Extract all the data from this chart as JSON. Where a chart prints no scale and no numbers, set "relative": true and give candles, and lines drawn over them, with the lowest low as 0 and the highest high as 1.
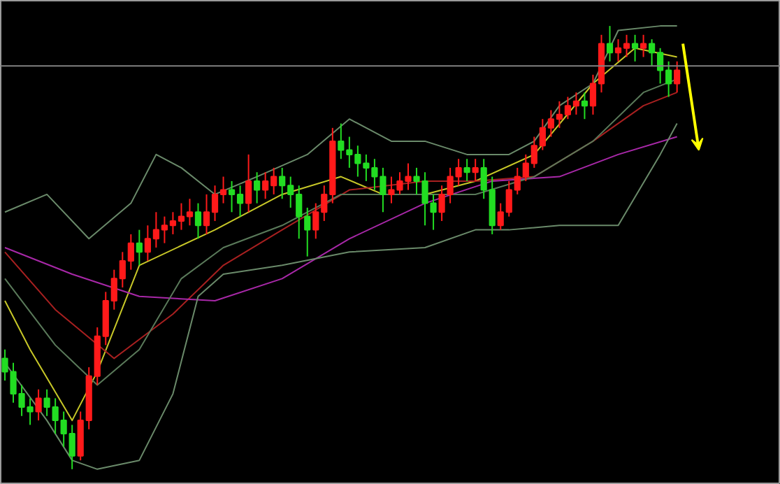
{
  "chart_data": {
    "type": "candlestick",
    "relative": true,
    "grid": false,
    "categories": [
      null,
      null,
      null,
      null,
      null,
      null,
      null,
      null,
      null,
      null,
      null,
      null,
      null,
      null,
      null,
      null,
      null,
      null,
      null,
      null,
      null,
      null,
      null,
      null,
      null,
      null,
      null,
      null,
      null,
      null,
      null,
      null,
      null,
      null,
      null,
      null,
      null,
      null,
      null,
      null,
      null,
      null,
      null,
      null,
      null,
      null,
      null,
      null,
      null,
      null,
      null,
      null,
      null,
      null,
      null,
      null,
      null,
      null,
      null,
      null,
      null,
      null,
      null,
      null,
      null,
      null,
      null,
      null,
      null,
      null,
      null,
      null,
      null,
      null,
      null,
      null,
      null,
      null,
      null,
      null,
      null
    ],
    "ohlc": [
      [
        0.25,
        0.27,
        0.2,
        0.22
      ],
      [
        0.22,
        0.24,
        0.15,
        0.17
      ],
      [
        0.17,
        0.19,
        0.12,
        0.14
      ],
      [
        0.14,
        0.16,
        0.1,
        0.13
      ],
      [
        0.13,
        0.18,
        0.11,
        0.16
      ],
      [
        0.16,
        0.18,
        0.12,
        0.14
      ],
      [
        0.14,
        0.16,
        0.08,
        0.11
      ],
      [
        0.11,
        0.13,
        0.05,
        0.08
      ],
      [
        0.08,
        0.1,
        0.0,
        0.03
      ],
      [
        0.03,
        0.13,
        0.02,
        0.11
      ],
      [
        0.11,
        0.23,
        0.09,
        0.21
      ],
      [
        0.21,
        0.32,
        0.19,
        0.3
      ],
      [
        0.3,
        0.4,
        0.28,
        0.38
      ],
      [
        0.38,
        0.45,
        0.36,
        0.43
      ],
      [
        0.43,
        0.49,
        0.41,
        0.47
      ],
      [
        0.47,
        0.53,
        0.45,
        0.51
      ],
      [
        0.51,
        0.54,
        0.46,
        0.49
      ],
      [
        0.49,
        0.55,
        0.47,
        0.52
      ],
      [
        0.52,
        0.58,
        0.5,
        0.54
      ],
      [
        0.54,
        0.57,
        0.51,
        0.55
      ],
      [
        0.55,
        0.58,
        0.53,
        0.56
      ],
      [
        0.56,
        0.6,
        0.54,
        0.57
      ],
      [
        0.57,
        0.61,
        0.55,
        0.58
      ],
      [
        0.58,
        0.6,
        0.52,
        0.55
      ],
      [
        0.55,
        0.62,
        0.53,
        0.58
      ],
      [
        0.58,
        0.64,
        0.56,
        0.62
      ],
      [
        0.62,
        0.66,
        0.6,
        0.63
      ],
      [
        0.63,
        0.65,
        0.58,
        0.62
      ],
      [
        0.62,
        0.64,
        0.57,
        0.6
      ],
      [
        0.6,
        0.71,
        0.58,
        0.65
      ],
      [
        0.65,
        0.67,
        0.6,
        0.63
      ],
      [
        0.63,
        0.67,
        0.61,
        0.65
      ],
      [
        0.64,
        0.68,
        0.62,
        0.66
      ],
      [
        0.66,
        0.68,
        0.61,
        0.64
      ],
      [
        0.64,
        0.66,
        0.59,
        0.62
      ],
      [
        0.62,
        0.64,
        0.52,
        0.57
      ],
      [
        0.57,
        0.59,
        0.48,
        0.54
      ],
      [
        0.54,
        0.6,
        0.52,
        0.58
      ],
      [
        0.58,
        0.64,
        0.56,
        0.62
      ],
      [
        0.62,
        0.77,
        0.6,
        0.74
      ],
      [
        0.74,
        0.78,
        0.7,
        0.72
      ],
      [
        0.72,
        0.75,
        0.68,
        0.71
      ],
      [
        0.71,
        0.73,
        0.66,
        0.69
      ],
      [
        0.69,
        0.71,
        0.65,
        0.68
      ],
      [
        0.68,
        0.7,
        0.63,
        0.66
      ],
      [
        0.66,
        0.68,
        0.58,
        0.62
      ],
      [
        0.62,
        0.66,
        0.6,
        0.63
      ],
      [
        0.63,
        0.67,
        0.62,
        0.65
      ],
      [
        0.65,
        0.69,
        0.63,
        0.66
      ],
      [
        0.66,
        0.68,
        0.62,
        0.65
      ],
      [
        0.65,
        0.67,
        0.55,
        0.6
      ],
      [
        0.6,
        0.62,
        0.54,
        0.58
      ],
      [
        0.58,
        0.64,
        0.56,
        0.62
      ],
      [
        0.62,
        0.68,
        0.6,
        0.66
      ],
      [
        0.66,
        0.7,
        0.64,
        0.68
      ],
      [
        0.68,
        0.7,
        0.65,
        0.67
      ],
      [
        0.67,
        0.7,
        0.65,
        0.68
      ],
      [
        0.68,
        0.7,
        0.61,
        0.63
      ],
      [
        0.63,
        0.66,
        0.53,
        0.55
      ],
      [
        0.55,
        0.6,
        0.54,
        0.58
      ],
      [
        0.58,
        0.65,
        0.57,
        0.63
      ],
      [
        0.63,
        0.68,
        0.62,
        0.66
      ],
      [
        0.66,
        0.71,
        0.65,
        0.69
      ],
      [
        0.69,
        0.75,
        0.68,
        0.73
      ],
      [
        0.73,
        0.79,
        0.72,
        0.77
      ],
      [
        0.77,
        0.81,
        0.75,
        0.79
      ],
      [
        0.79,
        0.83,
        0.77,
        0.8
      ],
      [
        0.8,
        0.84,
        0.79,
        0.82
      ],
      [
        0.82,
        0.85,
        0.8,
        0.83
      ],
      [
        0.83,
        0.85,
        0.79,
        0.82
      ],
      [
        0.82,
        0.89,
        0.8,
        0.87
      ],
      [
        0.87,
        0.98,
        0.85,
        0.96
      ],
      [
        0.96,
        1.0,
        0.92,
        0.94
      ],
      [
        0.94,
        0.97,
        0.92,
        0.95
      ],
      [
        0.95,
        0.98,
        0.93,
        0.96
      ],
      [
        0.96,
        0.98,
        0.92,
        0.95
      ],
      [
        0.95,
        0.98,
        0.93,
        0.96
      ],
      [
        0.96,
        0.97,
        0.91,
        0.94
      ],
      [
        0.94,
        0.95,
        0.87,
        0.9
      ],
      [
        0.9,
        0.92,
        0.84,
        0.87
      ],
      [
        0.87,
        0.92,
        0.85,
        0.9
      ]
    ],
    "colors": [
      "#22dd22",
      "#22dd22",
      "#22dd22",
      "#22dd22",
      "#ff1a1a",
      "#22dd22",
      "#22dd22",
      "#22dd22",
      "#22dd22",
      "#ff1a1a",
      "#ff1a1a",
      "#ff1a1a",
      "#ff1a1a",
      "#ff1a1a",
      "#ff1a1a",
      "#ff1a1a",
      "#22dd22",
      "#ff1a1a",
      "#ff1a1a",
      "#ff1a1a",
      "#ff1a1a",
      "#ff1a1a",
      "#ff1a1a",
      "#22dd22",
      "#ff1a1a",
      "#ff1a1a",
      "#ff1a1a",
      "#22dd22",
      "#22dd22",
      "#ff1a1a",
      "#22dd22",
      "#ff1a1a",
      "#ff1a1a",
      "#22dd22",
      "#22dd22",
      "#22dd22",
      "#22dd22",
      "#ff1a1a",
      "#ff1a1a",
      "#ff1a1a",
      "#22dd22",
      "#22dd22",
      "#22dd22",
      "#22dd22",
      "#22dd22",
      "#22dd22",
      "#ff1a1a",
      "#ff1a1a",
      "#ff1a1a",
      "#22dd22",
      "#22dd22",
      "#22dd22",
      "#ff1a1a",
      "#ff1a1a",
      "#ff1a1a",
      "#22dd22",
      "#ff1a1a",
      "#22dd22",
      "#22dd22",
      "#ff1a1a",
      "#ff1a1a",
      "#ff1a1a",
      "#ff1a1a",
      "#ff1a1a",
      "#ff1a1a",
      "#ff1a1a",
      "#ff1a1a",
      "#ff1a1a",
      "#ff1a1a",
      "#22dd22",
      "#ff1a1a",
      "#ff1a1a",
      "#22dd22",
      "#ff1a1a",
      "#ff1a1a",
      "#22dd22",
      "#ff1a1a",
      "#22dd22",
      "#22dd22",
      "#22dd22",
      "#ff1a1a"
    ],
    "series": [
      {
        "type": "line",
        "color": "#c8c828",
        "values": [
          0.38,
          null,
          null,
          0.27,
          null,
          null,
          null,
          null,
          0.11,
          null,
          null,
          0.22,
          null,
          null,
          null,
          null,
          0.46,
          null,
          null,
          null,
          null,
          null,
          null,
          null,
          null,
          0.54,
          null,
          null,
          null,
          null,
          null,
          null,
          null,
          0.62,
          null,
          null,
          null,
          null,
          null,
          null,
          0.66,
          null,
          null,
          null,
          null,
          0.62,
          null,
          null,
          null,
          null,
          0.62,
          null,
          null,
          null,
          null,
          null,
          0.65,
          null,
          null,
          null,
          null,
          null,
          null,
          0.71,
          null,
          null,
          null,
          null,
          null,
          null,
          0.87,
          null,
          null,
          null,
          null,
          0.95,
          null,
          null,
          null,
          null,
          0.93
        ]
      },
      {
        "type": "line",
        "color": "#a82020",
        "values": [
          0.49,
          null,
          null,
          null,
          null,
          null,
          0.36,
          null,
          null,
          null,
          null,
          null,
          null,
          0.25,
          null,
          null,
          null,
          null,
          null,
          null,
          0.35,
          null,
          null,
          null,
          null,
          null,
          0.46,
          null,
          null,
          null,
          null,
          null,
          null,
          0.54,
          null,
          null,
          null,
          null,
          null,
          null,
          null,
          0.63,
          null,
          null,
          null,
          null,
          null,
          null,
          null,
          null,
          0.65,
          null,
          null,
          null,
          null,
          null,
          0.65,
          null,
          null,
          null,
          null,
          null,
          null,
          0.66,
          null,
          null,
          null,
          null,
          null,
          null,
          0.74,
          null,
          null,
          null,
          null,
          null,
          0.82,
          null,
          null,
          null,
          0.85
        ]
      },
      {
        "type": "line",
        "color": "#a828a8",
        "values": [
          0.5,
          null,
          null,
          null,
          null,
          null,
          null,
          null,
          0.44,
          null,
          null,
          null,
          null,
          null,
          null,
          null,
          0.39,
          null,
          null,
          null,
          null,
          null,
          null,
          null,
          null,
          0.38,
          null,
          null,
          null,
          null,
          null,
          null,
          null,
          0.43,
          null,
          null,
          null,
          null,
          null,
          null,
          null,
          0.52,
          null,
          null,
          null,
          null,
          null,
          null,
          null,
          null,
          0.6,
          null,
          null,
          null,
          null,
          null,
          null,
          null,
          0.65,
          null,
          null,
          null,
          null,
          null,
          null,
          null,
          0.66,
          null,
          null,
          null,
          null,
          null,
          null,
          0.71,
          null,
          null,
          null,
          null,
          null,
          null,
          0.75
        ]
      },
      {
        "type": "line",
        "color": "#6a8a6a",
        "values": [
          0.58,
          null,
          null,
          null,
          null,
          0.62,
          null,
          null,
          null,
          null,
          0.52,
          null,
          null,
          null,
          null,
          0.6,
          null,
          null,
          0.71,
          null,
          null,
          0.68,
          null,
          null,
          null,
          0.62,
          null,
          null,
          null,
          null,
          0.66,
          null,
          null,
          null,
          null,
          null,
          0.71,
          null,
          null,
          null,
          null,
          0.79,
          null,
          null,
          null,
          null,
          0.74,
          null,
          null,
          null,
          0.74,
          null,
          null,
          null,
          null,
          0.71,
          null,
          null,
          null,
          null,
          0.71,
          null,
          null,
          0.74,
          null,
          null,
          0.82,
          null,
          null,
          null,
          0.87,
          null,
          null,
          0.99,
          null,
          null,
          null,
          null,
          1.0,
          null,
          1.0
        ]
      },
      {
        "type": "line",
        "color": "#5a7a5a",
        "values": [
          0.43,
          null,
          null,
          null,
          null,
          null,
          0.28,
          null,
          null,
          null,
          null,
          0.19,
          null,
          null,
          null,
          null,
          0.27,
          null,
          null,
          null,
          null,
          0.43,
          null,
          null,
          null,
          null,
          0.5,
          null,
          null,
          null,
          null,
          null,
          null,
          0.55,
          null,
          null,
          null,
          null,
          null,
          null,
          0.62,
          null,
          null,
          null,
          null,
          null,
          null,
          null,
          null,
          null,
          0.62,
          null,
          null,
          null,
          null,
          null,
          0.62,
          null,
          null,
          null,
          null,
          null,
          null,
          0.66,
          null,
          null,
          null,
          null,
          null,
          null,
          0.74,
          null,
          null,
          null,
          null,
          null,
          0.85,
          null,
          null,
          null,
          0.88
        ]
      },
      {
        "type": "line",
        "color": "#6a8a6a",
        "values": [
          0.24,
          null,
          null,
          null,
          null,
          0.11,
          null,
          null,
          0.02,
          null,
          null,
          0.0,
          null,
          null,
          null,
          null,
          0.02,
          null,
          null,
          null,
          0.17,
          null,
          null,
          0.39,
          null,
          null,
          0.44,
          null,
          null,
          null,
          null,
          null,
          null,
          0.46,
          null,
          null,
          null,
          null,
          null,
          null,
          null,
          0.49,
          null,
          null,
          null,
          null,
          null,
          null,
          null,
          null,
          0.5,
          null,
          null,
          null,
          null,
          null,
          0.54,
          null,
          null,
          null,
          0.54,
          null,
          null,
          null,
          null,
          null,
          0.55,
          null,
          null,
          null,
          null,
          null,
          null,
          0.55,
          null,
          null,
          null,
          null,
          0.71,
          null,
          0.78
        ]
      }
    ],
    "ref_lines": [
      {
        "axis": "y",
        "value": 0.91,
        "color": "#808080"
      }
    ]
  }
}
